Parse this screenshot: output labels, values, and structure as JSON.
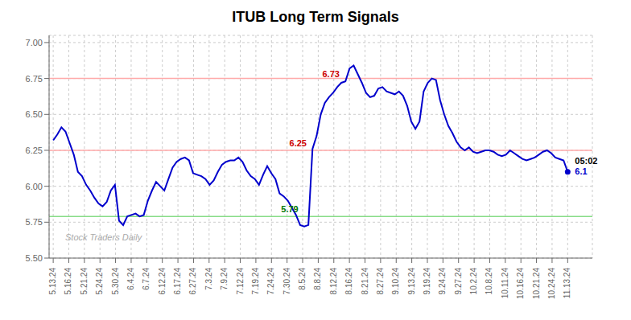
{
  "chart_data": {
    "type": "line",
    "title": "ITUB Long Term Signals",
    "x": [
      0,
      1,
      2,
      3,
      4,
      5,
      6,
      7,
      8,
      9,
      10,
      11,
      12,
      13,
      14,
      15,
      16,
      17,
      18,
      19,
      20,
      21,
      22,
      23,
      24,
      25,
      26,
      27,
      28,
      29,
      30,
      31,
      32,
      33,
      34,
      35,
      36,
      37,
      38,
      39,
      40,
      41,
      42,
      43,
      44,
      45,
      46,
      47,
      48,
      49,
      50,
      51,
      52,
      53,
      54,
      55,
      56,
      57,
      58,
      59,
      60,
      61,
      62,
      63,
      64,
      65,
      66,
      67,
      68,
      69,
      70,
      71,
      72,
      73,
      74,
      75,
      76,
      77,
      78,
      79,
      80,
      81,
      82,
      83,
      84,
      85,
      86,
      87,
      88,
      89,
      90,
      91,
      92,
      93,
      94,
      95,
      96,
      97,
      98,
      99,
      100,
      101,
      102,
      103,
      104,
      105,
      106,
      107,
      108,
      109,
      110,
      111,
      112,
      113,
      114,
      115,
      116,
      117,
      118,
      119,
      120,
      121,
      122,
      123,
      124,
      125
    ],
    "values": [
      6.32,
      6.36,
      6.41,
      6.38,
      6.3,
      6.22,
      6.1,
      6.07,
      6.01,
      5.97,
      5.92,
      5.88,
      5.86,
      5.89,
      5.97,
      6.01,
      5.76,
      5.73,
      5.79,
      5.8,
      5.81,
      5.79,
      5.8,
      5.9,
      5.97,
      6.03,
      6.0,
      5.97,
      6.05,
      6.13,
      6.17,
      6.19,
      6.2,
      6.18,
      6.09,
      6.08,
      6.07,
      6.05,
      6.01,
      6.04,
      6.1,
      6.15,
      6.17,
      6.18,
      6.18,
      6.2,
      6.17,
      6.11,
      6.07,
      6.05,
      6.01,
      6.08,
      6.14,
      6.09,
      6.05,
      5.95,
      5.93,
      5.9,
      5.85,
      5.8,
      5.73,
      5.72,
      5.73,
      6.26,
      6.35,
      6.5,
      6.58,
      6.62,
      6.65,
      6.69,
      6.72,
      6.73,
      6.82,
      6.84,
      6.78,
      6.72,
      6.65,
      6.62,
      6.63,
      6.68,
      6.69,
      6.66,
      6.65,
      6.64,
      6.66,
      6.63,
      6.56,
      6.45,
      6.4,
      6.45,
      6.66,
      6.72,
      6.75,
      6.74,
      6.6,
      6.5,
      6.42,
      6.37,
      6.31,
      6.27,
      6.25,
      6.27,
      6.24,
      6.23,
      6.24,
      6.25,
      6.25,
      6.24,
      6.22,
      6.21,
      6.22,
      6.25,
      6.23,
      6.21,
      6.19,
      6.18,
      6.19,
      6.2,
      6.22,
      6.24,
      6.25,
      6.23,
      6.2,
      6.19,
      6.18,
      6.1
    ],
    "color": "#0000cc",
    "xlim": [
      -1,
      131
    ],
    "xticks": [
      {
        "value": 0,
        "label": "5.13.24"
      },
      {
        "value": 3.787878787878788,
        "label": "5.16.24"
      },
      {
        "value": 7.575757575757576,
        "label": "5.21.24"
      },
      {
        "value": 11.363636363636363,
        "label": "5.24.24"
      },
      {
        "value": 15.151515151515152,
        "label": "5.30.24"
      },
      {
        "value": 18.939393939393938,
        "label": "6.4.24"
      },
      {
        "value": 22.727272727272727,
        "label": "6.7.24"
      },
      {
        "value": 26.515151515151516,
        "label": "6.12.24"
      },
      {
        "value": 30.303030303030305,
        "label": "6.17.24"
      },
      {
        "value": 34.09090909090909,
        "label": "6.27.24"
      },
      {
        "value": 37.878787878787875,
        "label": "7.3.24"
      },
      {
        "value": 41.666666666666664,
        "label": "7.9.24"
      },
      {
        "value": 45.45454545454545,
        "label": "7.12.24"
      },
      {
        "value": 49.24242424242424,
        "label": "7.19.24"
      },
      {
        "value": 53.03030303030303,
        "label": "7.24.24"
      },
      {
        "value": 56.81818181818182,
        "label": "7.30.24"
      },
      {
        "value": 60.60606060606061,
        "label": "8.5.24"
      },
      {
        "value": 64.39393939393939,
        "label": "8.8.24"
      },
      {
        "value": 68.18181818181819,
        "label": "8.12.24"
      },
      {
        "value": 71.96969696969697,
        "label": "8.16.24"
      },
      {
        "value": 75.75757575757575,
        "label": "8.21.24"
      },
      {
        "value": 79.54545454545455,
        "label": "8.27.24"
      },
      {
        "value": 83.33333333333333,
        "label": "9.10.24"
      },
      {
        "value": 87.12121212121212,
        "label": "9.13.24"
      },
      {
        "value": 90.9090909090909,
        "label": "9.19.24"
      },
      {
        "value": 94.6969696969697,
        "label": "9.24.24"
      },
      {
        "value": 98.48484848484848,
        "label": "9.27.24"
      },
      {
        "value": 102.27272727272727,
        "label": "10.2.24"
      },
      {
        "value": 106.06060606060606,
        "label": "10.8.24"
      },
      {
        "value": 109.84848484848484,
        "label": "10.11.24"
      },
      {
        "value": 113.63636363636364,
        "label": "10.16.24"
      },
      {
        "value": 117.42424242424242,
        "label": "10.21.24"
      },
      {
        "value": 121.21212121212122,
        "label": "10.24.24"
      },
      {
        "value": 125,
        "label": "11.13.24"
      }
    ],
    "ylim": [
      5.5,
      7.05
    ],
    "yticks": [
      {
        "value": 5.5,
        "label": "5.50"
      },
      {
        "value": 5.75,
        "label": "5.75"
      },
      {
        "value": 6.0,
        "label": "6.00"
      },
      {
        "value": 6.25,
        "label": "6.25"
      },
      {
        "value": 6.5,
        "label": "6.50"
      },
      {
        "value": 6.75,
        "label": "6.75"
      },
      {
        "value": 7.0,
        "label": "7.00"
      }
    ],
    "grid": true,
    "hlines": [
      {
        "y": 6.75,
        "color": "#ffaaaa"
      },
      {
        "y": 6.25,
        "color": "#ffaaaa"
      },
      {
        "y": 5.79,
        "color": "#88dd88"
      }
    ],
    "annotations": [
      {
        "text": "6.73",
        "x": 71,
        "y": 6.73,
        "color": "#cc0000"
      },
      {
        "text": "6.25",
        "x": 63,
        "y": 6.25,
        "color": "#cc0000"
      },
      {
        "text": "5.79",
        "x": 61,
        "y": 5.79,
        "color": "#007700"
      },
      {
        "text": "05:02",
        "x": 125,
        "y": 6.1,
        "color": "#000000"
      },
      {
        "text": "6.1",
        "x": 125,
        "y": 6.1,
        "color": "#0000cc"
      }
    ],
    "watermark": {
      "text": "Stock Traders Daily",
      "color": "#aaaaaa"
    }
  }
}
